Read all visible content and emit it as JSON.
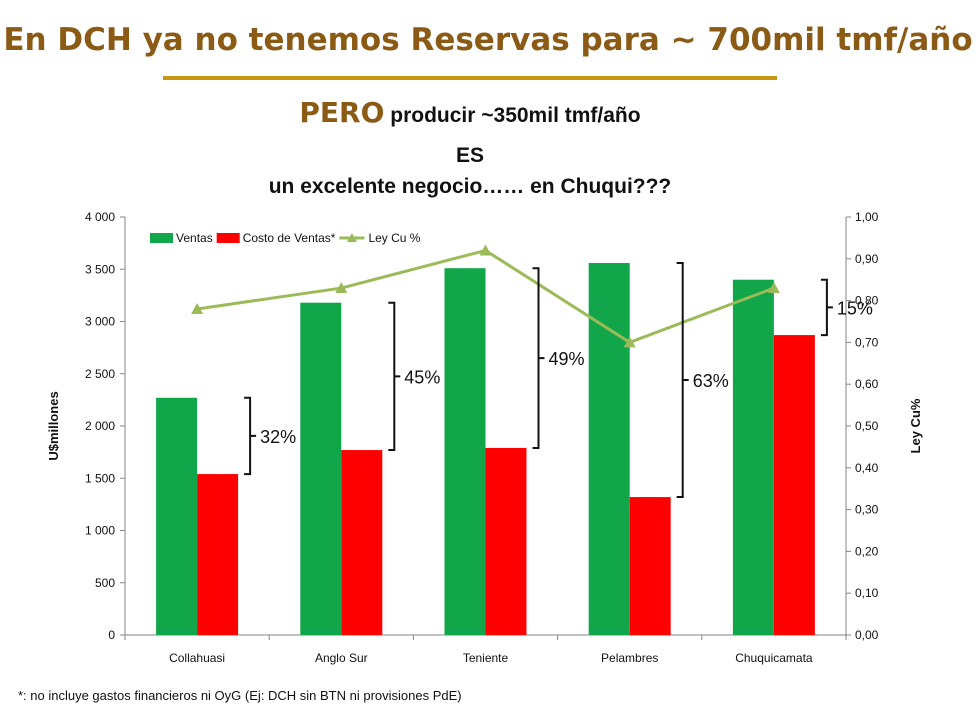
{
  "slide": {
    "title": "En DCH ya no tenemos Reservas para ~ 700mil tmf/año",
    "subtitle_bold": "PERO",
    "subtitle_rest": " producir ~350mil tmf/año",
    "subtitle_line2": "ES",
    "subtitle_line3": "un excelente negocio…… en Chuqui???",
    "footnote": "*: no incluye gastos financieros ni OyG (Ej: DCH sin BTN ni provisiones PdE)"
  },
  "chart_data": {
    "type": "bar",
    "categories": [
      "Collahuasi",
      "Anglo Sur",
      "Teniente",
      "Pelambres",
      "Chuquicamata"
    ],
    "series": [
      {
        "name": "Ventas",
        "axis": "left",
        "type": "bar",
        "color": "#12A64A",
        "values": [
          2270,
          3180,
          3510,
          3560,
          3400
        ]
      },
      {
        "name": "Costo de Ventas*",
        "axis": "left",
        "type": "bar",
        "color": "#FF0000",
        "values": [
          1540,
          1770,
          1790,
          1320,
          2870
        ]
      },
      {
        "name": "Ley Cu %",
        "axis": "right",
        "type": "line",
        "color": "#9BBB59",
        "values": [
          0.78,
          0.83,
          0.92,
          0.7,
          0.83
        ]
      }
    ],
    "ylabel": "U$millones",
    "ylabel_right": "Ley Cu%",
    "ylim": [
      0,
      4000
    ],
    "ylim_right": [
      0,
      1.0
    ],
    "yticks": [
      "0",
      "500",
      "1 000",
      "1 500",
      "2 000",
      "2 500",
      "3 000",
      "3 500",
      "4 000"
    ],
    "yticks_right": [
      "0,00",
      "0,10",
      "0,20",
      "0,30",
      "0,40",
      "0,50",
      "0,60",
      "0,70",
      "0,80",
      "0,90",
      "1,00"
    ],
    "legend_position": "top-left",
    "grid": false,
    "margins": [
      {
        "category": "Collahuasi",
        "label": "32%",
        "from_value": 2270,
        "to_value": 1540
      },
      {
        "category": "Anglo Sur",
        "label": "45%",
        "from_value": 3180,
        "to_value": 1770
      },
      {
        "category": "Teniente",
        "label": "49%",
        "from_value": 3510,
        "to_value": 1790
      },
      {
        "category": "Pelambres",
        "label": "63%",
        "from_value": 3560,
        "to_value": 1320
      },
      {
        "category": "Chuquicamata",
        "label": "15%",
        "from_value": 3400,
        "to_value": 2870
      }
    ]
  }
}
